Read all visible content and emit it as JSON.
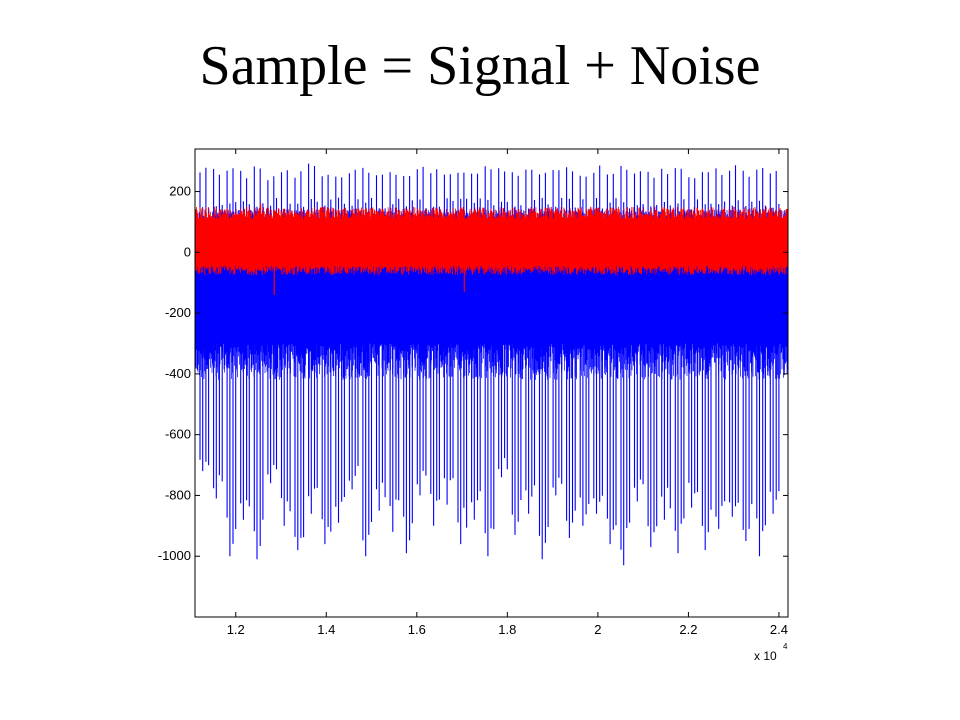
{
  "slide": {
    "title": "Sample = Signal + Noise"
  },
  "chart_data": {
    "type": "line",
    "title": "",
    "xlabel": "",
    "ylabel": "",
    "x_multiplier_label": "x 10",
    "x_multiplier_exponent": "4",
    "xlim": [
      1.11,
      2.42
    ],
    "ylim": [
      -1200,
      340
    ],
    "x_ticks": [
      1.2,
      1.4,
      1.6,
      1.8,
      2.0,
      2.2,
      2.4
    ],
    "x_tick_labels": [
      "1.2",
      "1.4",
      "1.6",
      "1.8",
      "2",
      "2.2",
      "2.4"
    ],
    "y_ticks": [
      200,
      0,
      -200,
      -400,
      -600,
      -800,
      -1000
    ],
    "y_tick_labels": [
      "200",
      "0",
      "-200",
      "-400",
      "-600",
      "-800",
      "-1000"
    ],
    "grid": false,
    "legend": "none",
    "series": [
      {
        "color": "#0000ff",
        "description_values": {
          "baseline_band": [
            -300,
            100
          ],
          "positive_spike_peak": 290,
          "negative_spike_range": [
            -1030,
            -500
          ]
        },
        "x": [
          1.13,
          1.16,
          1.19,
          1.22,
          1.25,
          1.28,
          1.31,
          1.34,
          1.37,
          1.4,
          1.43,
          1.46,
          1.49,
          1.52,
          1.55,
          1.58,
          1.61,
          1.64,
          1.67,
          1.7,
          1.73,
          1.76,
          1.79,
          1.82,
          1.85,
          1.88,
          1.91,
          1.94,
          1.97,
          2.0,
          2.03,
          2.06,
          2.09,
          2.12,
          2.15,
          2.18,
          2.21,
          2.24,
          2.27,
          2.3,
          2.33,
          2.36,
          2.39
        ],
        "spike_min": [
          -720,
          -810,
          -1000,
          -880,
          -1010,
          -760,
          -900,
          -980,
          -860,
          -960,
          -890,
          -780,
          -1000,
          -850,
          -920,
          -990,
          -800,
          -900,
          -830,
          -960,
          -880,
          -1000,
          -740,
          -930,
          -860,
          -1010,
          -800,
          -940,
          -900,
          -860,
          -960,
          -1030,
          -820,
          -970,
          -880,
          -990,
          -840,
          -980,
          -910,
          -870,
          -950,
          -1000,
          -860
        ],
        "spike_max": [
          290,
          285,
          280,
          270,
          290,
          265,
          288,
          275,
          292,
          280,
          270,
          286,
          290,
          278,
          282,
          268,
          291,
          280,
          276,
          288,
          272,
          284,
          290,
          279,
          283,
          270,
          287,
          281,
          275,
          290,
          266,
          288,
          280,
          274,
          286,
          291,
          272,
          285,
          279,
          289,
          270,
          283,
          277
        ]
      },
      {
        "color": "#ff0000",
        "description_values": {
          "baseline_band": [
            -60,
            140
          ],
          "noise_peak": 160,
          "noise_trough": -140
        },
        "x": [
          1.13,
          1.16,
          1.19,
          1.22,
          1.25,
          1.28,
          1.31,
          1.34,
          1.37,
          1.4,
          1.43,
          1.46,
          1.49,
          1.52,
          1.55,
          1.58,
          1.61,
          1.64,
          1.67,
          1.7,
          1.73,
          1.76,
          1.79,
          1.82,
          1.85,
          1.88,
          1.91,
          1.94,
          1.97,
          2.0,
          2.03,
          2.06,
          2.09,
          2.12,
          2.15,
          2.18,
          2.21,
          2.24,
          2.27,
          2.3,
          2.33,
          2.36,
          2.39
        ],
        "band_min": [
          -50,
          -60,
          -45,
          -55,
          -60,
          -140,
          -50,
          -58,
          -48,
          -52,
          -60,
          -46,
          -55,
          -50,
          -58,
          -44,
          -52,
          -60,
          -48,
          -130,
          -55,
          -50,
          -58,
          -46,
          -52,
          -60,
          -48,
          -54,
          -50,
          -56,
          -46,
          -58,
          -52,
          -48,
          -60,
          -50,
          -54,
          -46,
          -56,
          -52,
          -48,
          -58,
          -50
        ],
        "band_max": [
          130,
          140,
          125,
          135,
          160,
          138,
          130,
          145,
          128,
          136,
          140,
          126,
          134,
          142,
          130,
          138,
          128,
          144,
          132,
          136,
          140,
          126,
          134,
          142,
          130,
          146,
          128,
          136,
          140,
          132,
          126,
          144,
          134,
          130,
          138,
          142,
          128,
          136,
          130,
          140,
          134,
          128,
          136
        ]
      }
    ]
  }
}
